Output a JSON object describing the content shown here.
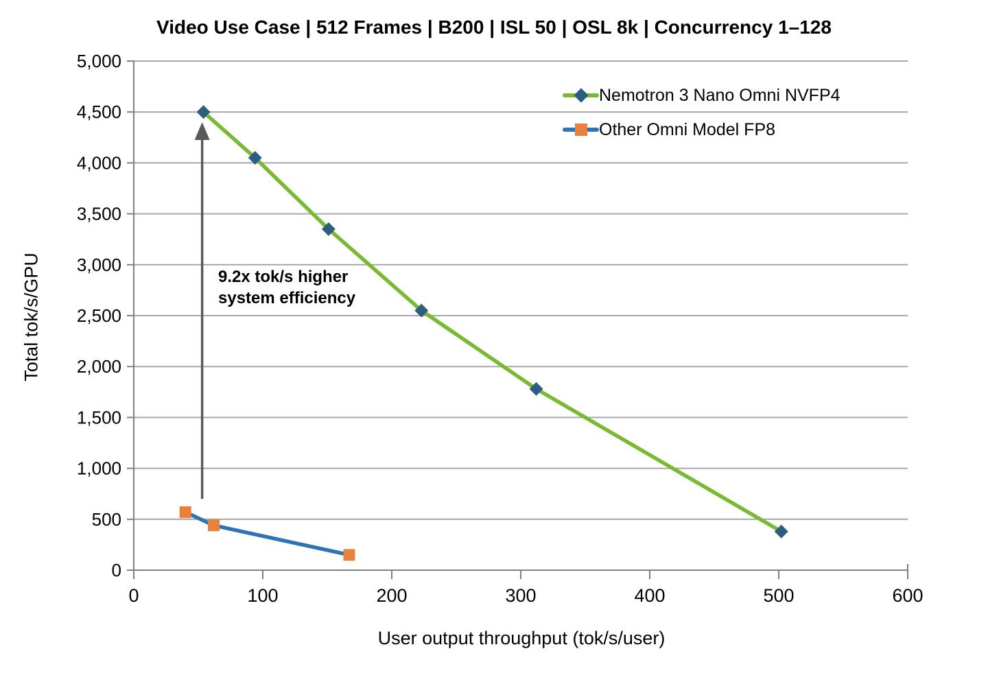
{
  "chart_data": {
    "type": "line",
    "title": "Video Use Case | 512 Frames  | B200 | ISL 50 | OSL 8k | Concurrency 1–128",
    "xlabel": "User output throughput (tok/s/user)",
    "ylabel": "Total tok/s/GPU",
    "xlim": [
      0,
      600
    ],
    "ylim": [
      0,
      5000
    ],
    "x_ticks": {
      "values": [
        0,
        100,
        200,
        300,
        400,
        500,
        600
      ],
      "labels": [
        "0",
        "100",
        "200",
        "300",
        "400",
        "500",
        "600"
      ]
    },
    "y_ticks": {
      "values": [
        0,
        500,
        1000,
        1500,
        2000,
        2500,
        3000,
        3500,
        4000,
        4500,
        5000
      ],
      "labels": [
        "0",
        "500",
        "1,000",
        "1,500",
        "2,000",
        "2,500",
        "3,000",
        "3,500",
        "4,000",
        "4,500",
        "5,000"
      ]
    },
    "grid": "horizontal",
    "legend_position": "top-right-inside",
    "series": [
      {
        "name": "Nemotron 3 Nano Omni NVFP4",
        "line_color": "#79B933",
        "marker": "diamond",
        "marker_color": "#2D5E80",
        "points": [
          [
            54,
            4500
          ],
          [
            94,
            4050
          ],
          [
            151,
            3350
          ],
          [
            223,
            2550
          ],
          [
            312,
            1780
          ],
          [
            502,
            380
          ]
        ]
      },
      {
        "name": "Other Omni Model FP8",
        "line_color": "#2E74B5",
        "marker": "square",
        "marker_color": "#E8813A",
        "points": [
          [
            40,
            570
          ],
          [
            62,
            440
          ],
          [
            167,
            150
          ]
        ]
      }
    ],
    "annotation": {
      "line1": "9.2x tok/s higher",
      "line2": "system efficiency",
      "arrow": {
        "x": 53,
        "y_from": 700,
        "y_to": 4400,
        "color": "#58595B"
      }
    },
    "colors": {
      "grid": "#A6A6A6",
      "axis": "#7F7F7F",
      "text": "#000000",
      "background": "#FFFFFF"
    }
  }
}
